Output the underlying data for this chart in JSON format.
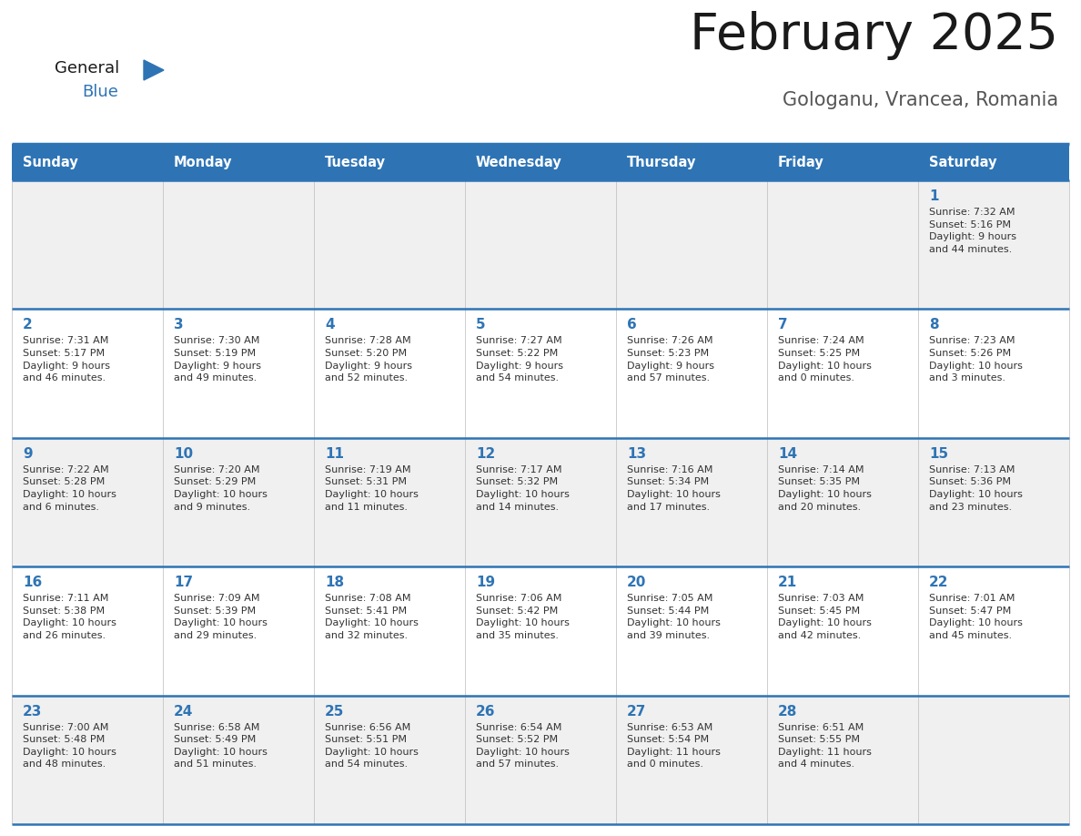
{
  "title": "February 2025",
  "subtitle": "Gologanu, Vrancea, Romania",
  "days_of_week": [
    "Sunday",
    "Monday",
    "Tuesday",
    "Wednesday",
    "Thursday",
    "Friday",
    "Saturday"
  ],
  "header_bg": "#2E74B5",
  "header_text": "#FFFFFF",
  "row_bg_odd": "#F0F0F0",
  "row_bg_even": "#FFFFFF",
  "day_number_color": "#2E74B5",
  "text_color": "#333333",
  "border_color": "#2E74B5",
  "logo_general_color": "#1a1a1a",
  "logo_blue_color": "#2E74B5",
  "logo_triangle_color": "#2E74B5",
  "calendar_data": [
    [
      null,
      null,
      null,
      null,
      null,
      null,
      {
        "day": "1",
        "sunrise": "7:32 AM",
        "sunset": "5:16 PM",
        "daylight": "9 hours\nand 44 minutes."
      }
    ],
    [
      {
        "day": "2",
        "sunrise": "7:31 AM",
        "sunset": "5:17 PM",
        "daylight": "9 hours\nand 46 minutes."
      },
      {
        "day": "3",
        "sunrise": "7:30 AM",
        "sunset": "5:19 PM",
        "daylight": "9 hours\nand 49 minutes."
      },
      {
        "day": "4",
        "sunrise": "7:28 AM",
        "sunset": "5:20 PM",
        "daylight": "9 hours\nand 52 minutes."
      },
      {
        "day": "5",
        "sunrise": "7:27 AM",
        "sunset": "5:22 PM",
        "daylight": "9 hours\nand 54 minutes."
      },
      {
        "day": "6",
        "sunrise": "7:26 AM",
        "sunset": "5:23 PM",
        "daylight": "9 hours\nand 57 minutes."
      },
      {
        "day": "7",
        "sunrise": "7:24 AM",
        "sunset": "5:25 PM",
        "daylight": "10 hours\nand 0 minutes."
      },
      {
        "day": "8",
        "sunrise": "7:23 AM",
        "sunset": "5:26 PM",
        "daylight": "10 hours\nand 3 minutes."
      }
    ],
    [
      {
        "day": "9",
        "sunrise": "7:22 AM",
        "sunset": "5:28 PM",
        "daylight": "10 hours\nand 6 minutes."
      },
      {
        "day": "10",
        "sunrise": "7:20 AM",
        "sunset": "5:29 PM",
        "daylight": "10 hours\nand 9 minutes."
      },
      {
        "day": "11",
        "sunrise": "7:19 AM",
        "sunset": "5:31 PM",
        "daylight": "10 hours\nand 11 minutes."
      },
      {
        "day": "12",
        "sunrise": "7:17 AM",
        "sunset": "5:32 PM",
        "daylight": "10 hours\nand 14 minutes."
      },
      {
        "day": "13",
        "sunrise": "7:16 AM",
        "sunset": "5:34 PM",
        "daylight": "10 hours\nand 17 minutes."
      },
      {
        "day": "14",
        "sunrise": "7:14 AM",
        "sunset": "5:35 PM",
        "daylight": "10 hours\nand 20 minutes."
      },
      {
        "day": "15",
        "sunrise": "7:13 AM",
        "sunset": "5:36 PM",
        "daylight": "10 hours\nand 23 minutes."
      }
    ],
    [
      {
        "day": "16",
        "sunrise": "7:11 AM",
        "sunset": "5:38 PM",
        "daylight": "10 hours\nand 26 minutes."
      },
      {
        "day": "17",
        "sunrise": "7:09 AM",
        "sunset": "5:39 PM",
        "daylight": "10 hours\nand 29 minutes."
      },
      {
        "day": "18",
        "sunrise": "7:08 AM",
        "sunset": "5:41 PM",
        "daylight": "10 hours\nand 32 minutes."
      },
      {
        "day": "19",
        "sunrise": "7:06 AM",
        "sunset": "5:42 PM",
        "daylight": "10 hours\nand 35 minutes."
      },
      {
        "day": "20",
        "sunrise": "7:05 AM",
        "sunset": "5:44 PM",
        "daylight": "10 hours\nand 39 minutes."
      },
      {
        "day": "21",
        "sunrise": "7:03 AM",
        "sunset": "5:45 PM",
        "daylight": "10 hours\nand 42 minutes."
      },
      {
        "day": "22",
        "sunrise": "7:01 AM",
        "sunset": "5:47 PM",
        "daylight": "10 hours\nand 45 minutes."
      }
    ],
    [
      {
        "day": "23",
        "sunrise": "7:00 AM",
        "sunset": "5:48 PM",
        "daylight": "10 hours\nand 48 minutes."
      },
      {
        "day": "24",
        "sunrise": "6:58 AM",
        "sunset": "5:49 PM",
        "daylight": "10 hours\nand 51 minutes."
      },
      {
        "day": "25",
        "sunrise": "6:56 AM",
        "sunset": "5:51 PM",
        "daylight": "10 hours\nand 54 minutes."
      },
      {
        "day": "26",
        "sunrise": "6:54 AM",
        "sunset": "5:52 PM",
        "daylight": "10 hours\nand 57 minutes."
      },
      {
        "day": "27",
        "sunrise": "6:53 AM",
        "sunset": "5:54 PM",
        "daylight": "11 hours\nand 0 minutes."
      },
      {
        "day": "28",
        "sunrise": "6:51 AM",
        "sunset": "5:55 PM",
        "daylight": "11 hours\nand 4 minutes."
      },
      null
    ]
  ]
}
